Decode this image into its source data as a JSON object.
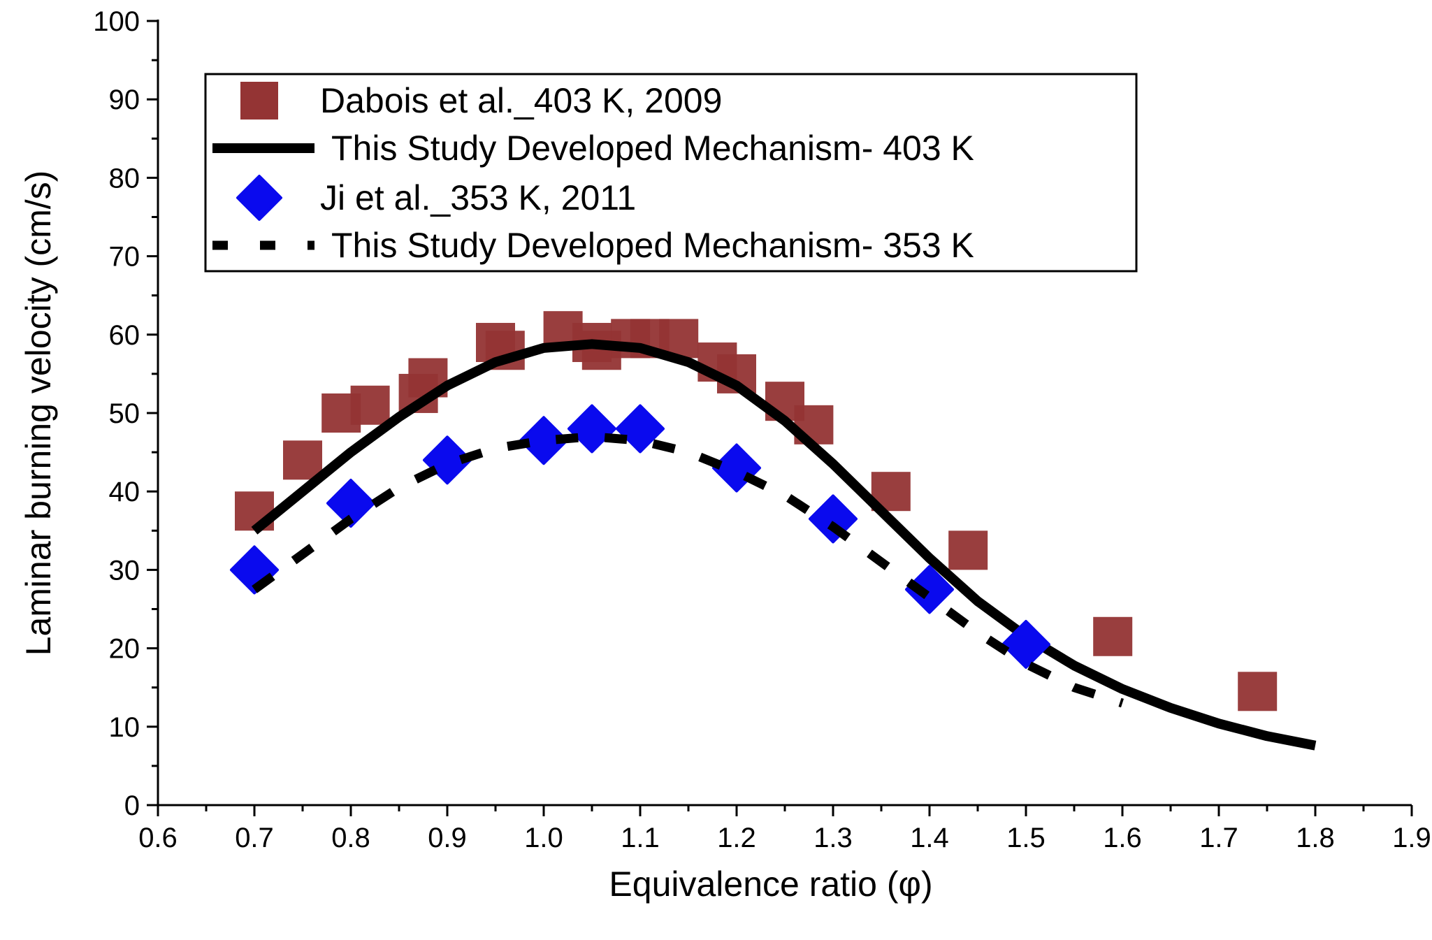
{
  "chart_data": {
    "type": "scatter",
    "xlabel": "Equivalence ratio (φ)",
    "ylabel": "Laminar burning velocity (cm/s)",
    "xlim": [
      0.6,
      1.9
    ],
    "ylim": [
      0,
      100
    ],
    "x_ticks": [
      "0.6",
      "0.7",
      "0.8",
      "0.9",
      "1.0",
      "1.1",
      "1.2",
      "1.3",
      "1.4",
      "1.5",
      "1.6",
      "1.7",
      "1.8",
      "1.9"
    ],
    "y_ticks": [
      "0",
      "10",
      "20",
      "30",
      "40",
      "50",
      "60",
      "70",
      "80",
      "90",
      "100"
    ],
    "grid": false,
    "legend_position": "top-left",
    "series": [
      {
        "name": "Dabois et al._403 K, 2009",
        "kind": "markers",
        "marker": "square",
        "color": "#943434",
        "x": [
          0.7,
          0.75,
          0.79,
          0.82,
          0.87,
          0.88,
          0.95,
          0.96,
          1.02,
          1.05,
          1.06,
          1.09,
          1.11,
          1.14,
          1.18,
          1.2,
          1.25,
          1.28,
          1.36,
          1.44,
          1.59,
          1.74
        ],
        "y": [
          37.5,
          44,
          50,
          51,
          52.5,
          54.5,
          59,
          58,
          60.5,
          59,
          58,
          59.5,
          59.5,
          59.5,
          56.5,
          55,
          51.5,
          48.5,
          40,
          32.5,
          21.5,
          14.5
        ]
      },
      {
        "name": "This Study Developed Mechanism- 403 K",
        "kind": "solid-line",
        "color": "#000000",
        "x": [
          0.7,
          0.75,
          0.8,
          0.85,
          0.9,
          0.95,
          1.0,
          1.05,
          1.1,
          1.15,
          1.2,
          1.25,
          1.3,
          1.35,
          1.4,
          1.45,
          1.5,
          1.55,
          1.6,
          1.65,
          1.7,
          1.75,
          1.8
        ],
        "y": [
          35,
          40,
          45,
          49.5,
          53.5,
          56.5,
          58.3,
          58.8,
          58.3,
          56.5,
          53.5,
          49,
          43.5,
          37.5,
          31.5,
          26,
          21.5,
          17.8,
          14.8,
          12.4,
          10.4,
          8.8,
          7.6
        ]
      },
      {
        "name": "Ji et al._353 K, 2011",
        "kind": "markers",
        "marker": "diamond",
        "color": "#0a0aee",
        "x": [
          0.7,
          0.8,
          0.9,
          1.0,
          1.05,
          1.1,
          1.2,
          1.3,
          1.4,
          1.5
        ],
        "y": [
          30,
          38.5,
          44,
          46.5,
          48,
          48,
          43,
          36.5,
          27.5,
          20.5
        ]
      },
      {
        "name": "This Study Developed Mechanism- 353 K",
        "kind": "dashed-line",
        "color": "#000000",
        "x": [
          0.7,
          0.75,
          0.8,
          0.85,
          0.9,
          0.95,
          1.0,
          1.05,
          1.1,
          1.15,
          1.2,
          1.25,
          1.3,
          1.35,
          1.4,
          1.45,
          1.5,
          1.55,
          1.6
        ],
        "y": [
          27.5,
          32,
          36.5,
          40.5,
          43.5,
          45.5,
          46.5,
          47,
          46.5,
          45,
          42.5,
          39.5,
          35.5,
          31,
          26.5,
          22,
          18,
          15,
          13
        ]
      }
    ]
  }
}
